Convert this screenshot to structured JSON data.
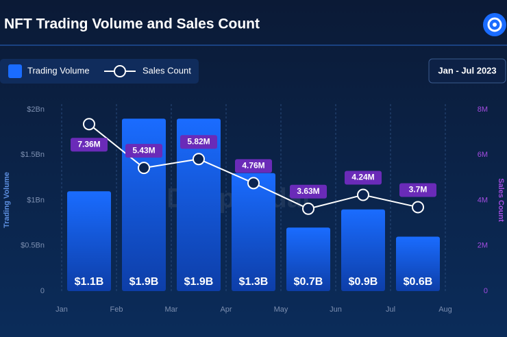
{
  "chart_data": {
    "type": "bar_line",
    "title": "NFT Trading Volume and Sales Count",
    "date_range": "Jan - Jul 2023",
    "watermark": "DappRadar",
    "y_label": "Trading Volume",
    "y2_label": "Sales Count",
    "xticks": [
      "Jan",
      "Feb",
      "Mar",
      "Apr",
      "May",
      "Jun",
      "Jul",
      "Aug"
    ],
    "ylim": [
      0,
      2
    ],
    "yticks": [
      0,
      {
        "value": 0.5,
        "label": "$0.5Bn"
      },
      {
        "value": 1,
        "label": "$1Bn"
      },
      {
        "value": 1.5,
        "label": "$1.5Bn"
      },
      {
        "value": 2,
        "label": "$2Bn"
      }
    ],
    "y2lim": [
      0,
      8
    ],
    "y2ticks": [
      0,
      {
        "value": 2,
        "label": "2M"
      },
      {
        "value": 4,
        "label": "4M"
      },
      {
        "value": 6,
        "label": "6M"
      },
      {
        "value": 8,
        "label": "8M"
      }
    ],
    "series": [
      {
        "name": "Trading Volume",
        "type": "bar",
        "color": "#1a6cff",
        "values": [
          1.1,
          1.9,
          1.9,
          1.3,
          0.7,
          0.9,
          0.6
        ],
        "value_labels": [
          "$1.1B",
          "$1.9B",
          "$1.9B",
          "$1.3B",
          "$0.7B",
          "$0.9B",
          "$0.6B"
        ]
      },
      {
        "name": "Sales Count",
        "type": "line",
        "axis": "y2",
        "color": "#ffffff",
        "values": [
          7.36,
          5.43,
          5.82,
          4.76,
          3.63,
          4.24,
          3.7
        ],
        "value_labels": [
          "7.36M",
          "5.43M",
          "5.82M",
          "4.76M",
          "3.63M",
          "4.24M",
          "3.7M"
        ]
      }
    ]
  }
}
